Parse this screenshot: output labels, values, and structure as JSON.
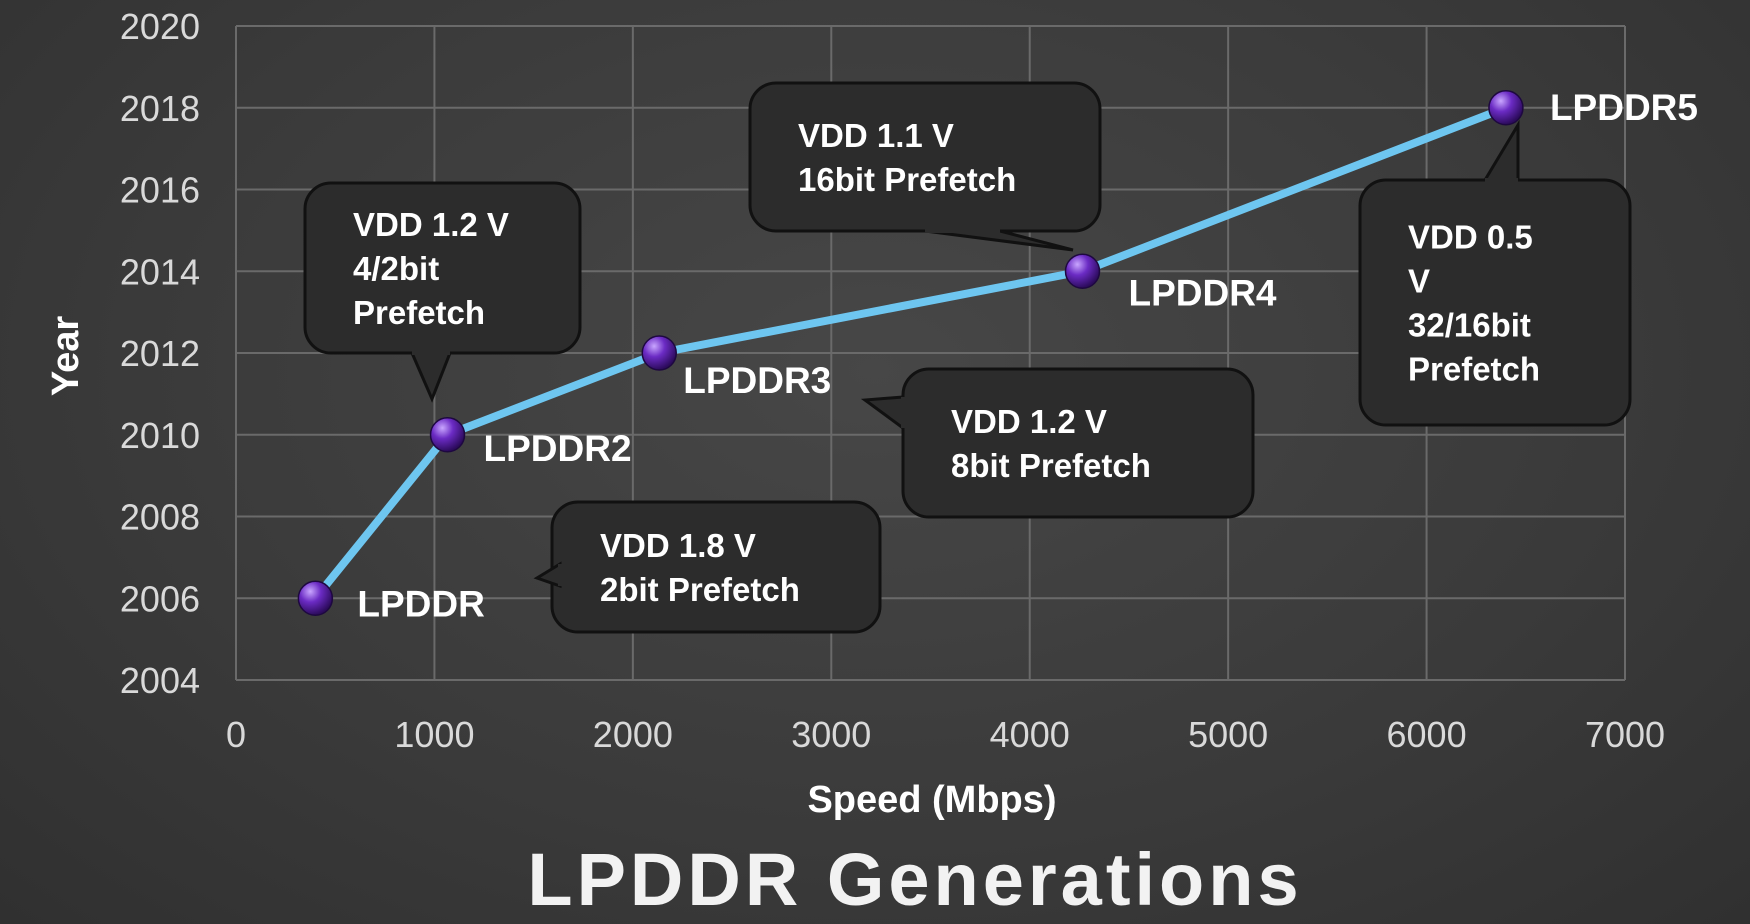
{
  "chart_data": {
    "type": "line",
    "title": "LPDDR Generations",
    "xlabel": "Speed (Mbps)",
    "ylabel": "Year",
    "xlim": [
      0,
      7000
    ],
    "ylim": [
      2004,
      2020
    ],
    "xticks": [
      0,
      1000,
      2000,
      3000,
      4000,
      5000,
      6000,
      7000
    ],
    "yticks": [
      2004,
      2006,
      2008,
      2010,
      2012,
      2014,
      2016,
      2018,
      2020
    ],
    "grid": true,
    "legend": "none",
    "points": [
      {
        "label": "LPDDR",
        "x": 400,
        "y": 2006
      },
      {
        "label": "LPDDR2",
        "x": 1066,
        "y": 2010
      },
      {
        "label": "LPDDR3",
        "x": 2133,
        "y": 2012
      },
      {
        "label": "LPDDR4",
        "x": 4266,
        "y": 2014
      },
      {
        "label": "LPDDR5",
        "x": 6400,
        "y": 2018
      }
    ],
    "annotations": [
      {
        "point": "LPDDR",
        "lines": [
          "VDD 1.8 V",
          "2bit Prefetch"
        ]
      },
      {
        "point": "LPDDR2",
        "lines": [
          "VDD 1.2 V",
          "4/2bit",
          "Prefetch"
        ]
      },
      {
        "point": "LPDDR3",
        "lines": [
          "VDD 1.2 V",
          "8bit Prefetch"
        ]
      },
      {
        "point": "LPDDR4",
        "lines": [
          "VDD 1.1 V",
          "16bit Prefetch"
        ]
      },
      {
        "point": "LPDDR5",
        "lines": [
          "VDD 0.5",
          "V",
          "32/16bit",
          "Prefetch"
        ]
      }
    ],
    "colors": {
      "line": "#6ec6f0",
      "marker": "#5a1fa6",
      "grid": "#6a6a6a",
      "callout_fill": "#2c2c2c",
      "callout_border": "#111111"
    }
  }
}
